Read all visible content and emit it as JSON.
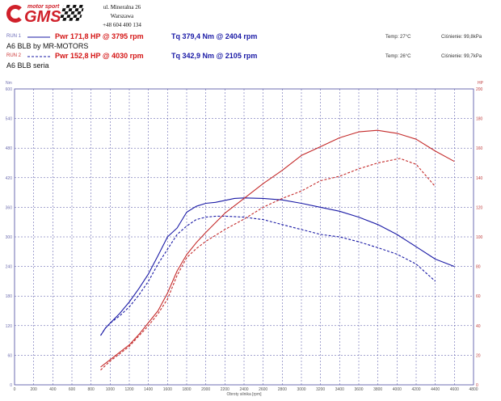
{
  "header": {
    "logo_text": "GMS",
    "logo_sub": "motor sport",
    "address_line1": "ul. Mineralna 26",
    "address_line2": "Warszawa",
    "address_line3": "+48 604 400 134"
  },
  "runs": [
    {
      "label": "RUN 1",
      "power": "Pwr 171,8 HP @ 3795 rpm",
      "torque": "Tq 379,4 Nm @ 2404 rpm",
      "temp": "Temp: 27°C",
      "pressure": "Ciśnienie: 99,8kPa",
      "name": "A6 BLB by MR-MOTORS",
      "style": "solid"
    },
    {
      "label": "RUN 2",
      "power": "Pwr 152,8 HP @ 4030 rpm",
      "torque": "Tq 342,9 Nm @ 2105 rpm",
      "temp": "Temp: 26°C",
      "pressure": "Ciśnienie: 99,7kPa",
      "name": "A6 BLB seria",
      "style": "dashed"
    }
  ],
  "colors": {
    "torque": "#1a1aa6",
    "power": "#c42a2a",
    "grid": "#4a4aa0",
    "axis_label": "#7070b0",
    "axis_label_right": "#c04040"
  },
  "chart_data": {
    "type": "line",
    "xlabel": "Obroty silnika [rpm]",
    "ylabel_left": "Nm",
    "ylabel_right": "HP",
    "xlim": [
      0,
      4800
    ],
    "ylim_left": [
      0,
      600
    ],
    "ylim_right": [
      0,
      200
    ],
    "x_ticks": [
      "0",
      "200",
      "400",
      "600",
      "800",
      "1000",
      "1200",
      "1400",
      "1600",
      "1800",
      "2000",
      "2200",
      "2400",
      "2600",
      "2800",
      "3000",
      "3200",
      "3400",
      "3600",
      "3800",
      "4000",
      "4200",
      "4400",
      "4600",
      "4800"
    ],
    "y_left_ticks": [
      "0",
      "60",
      "120",
      "180",
      "240",
      "300",
      "360",
      "420",
      "480",
      "540",
      "600"
    ],
    "y_right_ticks": [
      "0",
      "20",
      "40",
      "60",
      "80",
      "100",
      "120",
      "140",
      "160",
      "180",
      "200"
    ],
    "grid": true,
    "series": [
      {
        "name": "RUN 1",
        "axis": "left",
        "metric": "torque",
        "dash": false,
        "x": [
          900,
          950,
          1000,
          1100,
          1200,
          1300,
          1400,
          1500,
          1600,
          1700,
          1800,
          1900,
          2000,
          2100,
          2200,
          2300,
          2400,
          2600,
          2800,
          3000,
          3200,
          3400,
          3600,
          3800,
          4000,
          4200,
          4400,
          4600
        ],
        "y": [
          100,
          115,
          125,
          145,
          168,
          195,
          225,
          262,
          300,
          318,
          350,
          362,
          368,
          370,
          374,
          378,
          379,
          378,
          375,
          368,
          360,
          352,
          340,
          325,
          305,
          280,
          255,
          240
        ]
      },
      {
        "name": "RUN 2",
        "axis": "left",
        "metric": "torque",
        "dash": true,
        "x": [
          900,
          950,
          1000,
          1100,
          1200,
          1300,
          1400,
          1500,
          1600,
          1700,
          1800,
          1900,
          2000,
          2105,
          2200,
          2400,
          2600,
          2800,
          3000,
          3200,
          3400,
          3600,
          3800,
          4000,
          4200,
          4400
        ],
        "y": [
          100,
          115,
          125,
          140,
          158,
          182,
          210,
          245,
          275,
          305,
          322,
          335,
          340,
          342,
          342,
          340,
          335,
          325,
          315,
          305,
          300,
          290,
          278,
          265,
          245,
          210
        ]
      },
      {
        "name": "RUN 1",
        "axis": "right",
        "metric": "power",
        "dash": false,
        "x": [
          900,
          1000,
          1100,
          1200,
          1300,
          1400,
          1500,
          1600,
          1700,
          1800,
          1900,
          2000,
          2200,
          2400,
          2600,
          2800,
          3000,
          3200,
          3400,
          3600,
          3795,
          4000,
          4200,
          4400,
          4600
        ],
        "y": [
          12,
          17,
          22,
          27,
          34,
          42,
          50,
          62,
          77,
          88,
          96,
          103,
          116,
          126,
          136,
          145,
          155,
          161,
          167,
          171,
          172,
          170,
          166,
          158,
          151
        ]
      },
      {
        "name": "RUN 2",
        "axis": "right",
        "metric": "power",
        "dash": true,
        "x": [
          900,
          1000,
          1100,
          1200,
          1300,
          1400,
          1500,
          1600,
          1700,
          1800,
          1900,
          2000,
          2200,
          2400,
          2600,
          2800,
          3000,
          3200,
          3400,
          3600,
          3800,
          4030,
          4200,
          4400
        ],
        "y": [
          10,
          16,
          21,
          26,
          33,
          40,
          48,
          58,
          74,
          86,
          92,
          97,
          105,
          112,
          120,
          126,
          131,
          138,
          141,
          146,
          150,
          153,
          149,
          134
        ]
      }
    ]
  }
}
